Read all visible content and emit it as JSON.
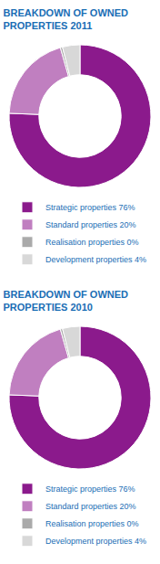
{
  "chart_data": [
    {
      "type": "pie",
      "title": "BREAKDOWN OF OWNED\nPROPERTIES 2011",
      "categories": [
        "Strategic properties 76%",
        "Standard properties 20%",
        "Realisation properties 0%",
        "Development properties 4%"
      ],
      "values": [
        76,
        20,
        0.5,
        4
      ],
      "colors": [
        "#8b1a8c",
        "#c07fc0",
        "#aaaaaa",
        "#d8d8d8"
      ],
      "legend": "bottom"
    },
    {
      "type": "pie",
      "title": "BREAKDOWN OF OWNED\nPROPERTIES 2010",
      "categories": [
        "Strategic properties 76%",
        "Standard properties 20%",
        "Realisation properties 0%",
        "Development properties 4%"
      ],
      "values": [
        76,
        20,
        0.5,
        4
      ],
      "colors": [
        "#8b1a8c",
        "#c07fc0",
        "#aaaaaa",
        "#d8d8d8"
      ],
      "legend": "bottom"
    }
  ]
}
